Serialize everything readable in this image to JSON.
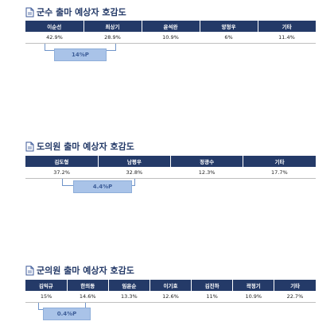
{
  "sections": [
    {
      "title": "군수 출마 예상자 호감도",
      "headers": [
        "이순선",
        "최상기",
        "윤석완",
        "양정우",
        "기타"
      ],
      "values": [
        "42.9%",
        "28.9%",
        "10.9%",
        "6%",
        "11.4%"
      ],
      "gap": "14%P"
    },
    {
      "title": "도의원 출마 예상자 호감도",
      "headers": [
        "김도형",
        "남평우",
        "정광수",
        "기타"
      ],
      "values": [
        "37.2%",
        "32.8%",
        "12.3%",
        "17.7%"
      ],
      "gap": "4.4%P"
    },
    {
      "title": "군의원 출마 예상자 호감도",
      "headers": [
        "김익규",
        "한의동",
        "임윤순",
        "이기호",
        "김진하",
        "곽정기",
        "기타"
      ],
      "values": [
        "15%",
        "14.6%",
        "13.3%",
        "12.6%",
        "11%",
        "10.9%",
        "22.7%"
      ],
      "gap": "0.4%P"
    }
  ],
  "colors": {
    "header_bg": "#243a68",
    "gap_box": "#a9c3e8",
    "title_text": "#243a68"
  },
  "icons": {
    "title_icon": "document-icon"
  }
}
